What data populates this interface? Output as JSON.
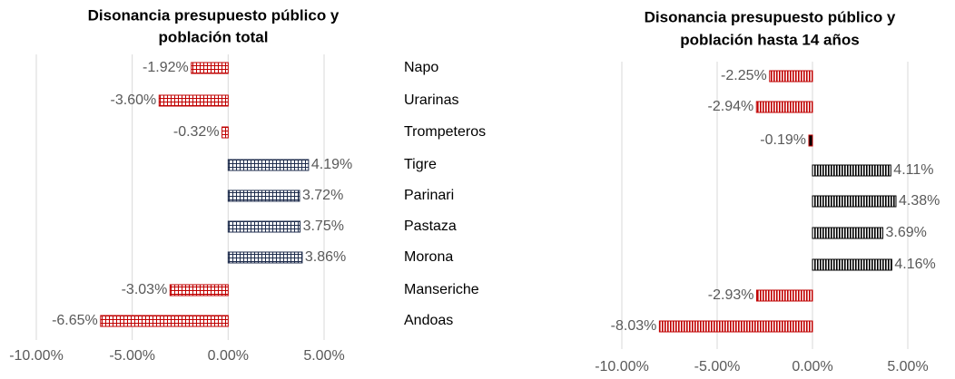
{
  "chart_data": [
    {
      "type": "bar",
      "orientation": "horizontal",
      "title": [
        "Disonancia presupuesto público y",
        "población total"
      ],
      "categories": [
        "Napo",
        "Urarinas",
        "Trompeteros",
        "Tigre",
        "Parinari",
        "Pastaza",
        "Morona",
        "Manseriche",
        "Andoas"
      ],
      "values": [
        -1.92,
        -3.6,
        -0.32,
        4.19,
        3.72,
        3.75,
        3.86,
        -3.03,
        -6.65
      ],
      "value_labels": [
        "-1.92%",
        "-3.60%",
        "-0.32%",
        "4.19%",
        "3.72%",
        "3.75%",
        "3.86%",
        "-3.03%",
        "-6.65%"
      ],
      "xlim": [
        -10,
        5
      ],
      "xticks": [
        {
          "value": -10,
          "label": "-10.00%"
        },
        {
          "value": -5,
          "label": "-5.00%"
        },
        {
          "value": 0,
          "label": "0.00%"
        },
        {
          "value": 5,
          "label": "5.00%"
        }
      ],
      "grid": true,
      "pattern": "grid",
      "negative_color": "#c00000",
      "positive_color": "#1f2d4d"
    },
    {
      "type": "bar",
      "orientation": "horizontal",
      "title": [
        "Disonancia presupuesto público y",
        "población hasta 14 años"
      ],
      "values": [
        -2.25,
        -2.94,
        -0.19,
        4.11,
        4.38,
        3.69,
        4.16,
        -2.93,
        -8.03
      ],
      "value_labels": [
        "-2.25%",
        "-2.94%",
        "-0.19%",
        "4.11%",
        "4.38%",
        "3.69%",
        "4.16%",
        "-2.93%",
        "-8.03%"
      ],
      "xlim": [
        -10,
        5
      ],
      "xticks": [
        {
          "value": -10,
          "label": "-10.00%"
        },
        {
          "value": -5,
          "label": "-5.00%"
        },
        {
          "value": 0,
          "label": "0.00%"
        },
        {
          "value": 5,
          "label": "5.00%"
        }
      ],
      "grid": true,
      "pattern": "stripes",
      "negative_color": "#c00000",
      "positive_color": "#000000"
    }
  ]
}
